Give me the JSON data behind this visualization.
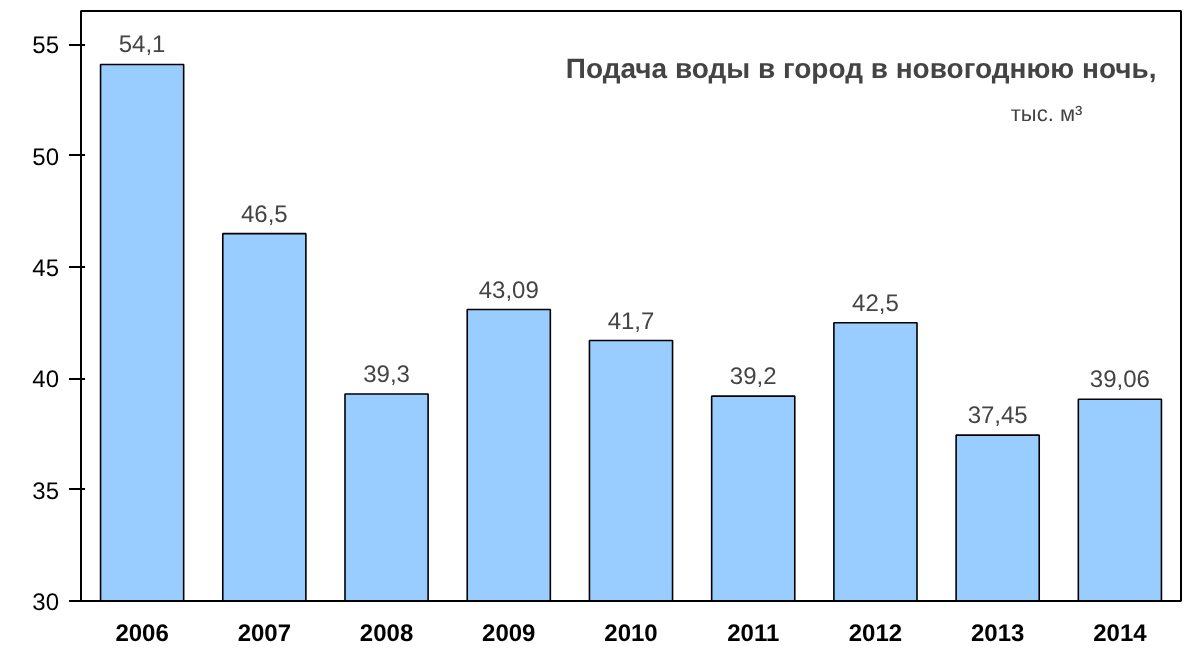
{
  "chart_data": {
    "type": "bar",
    "title": "Подача воды в город в новогоднюю ночь,",
    "subtitle": "тыс. м³",
    "categories": [
      "2006",
      "2007",
      "2008",
      "2009",
      "2010",
      "2011",
      "2012",
      "2013",
      "2014"
    ],
    "values": [
      54.1,
      46.5,
      39.3,
      43.09,
      41.7,
      39.2,
      42.5,
      37.45,
      39.06
    ],
    "value_labels": [
      "54,1",
      "46,5",
      "39,3",
      "43,09",
      "41,7",
      "39,2",
      "42,5",
      "37,45",
      "39,06"
    ],
    "color": "#99ccff",
    "ylim": [
      30,
      56.5
    ],
    "yticks": [
      30,
      35,
      40,
      45,
      50,
      55
    ],
    "grid": false
  }
}
